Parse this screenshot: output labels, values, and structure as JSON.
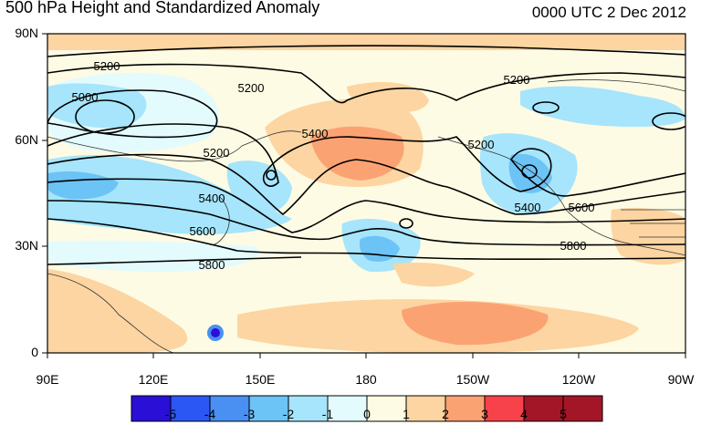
{
  "header": {
    "title": "500 hPa Height and Standardized Anomaly",
    "valid_time": "0000 UTC 2 Dec 2012"
  },
  "axes": {
    "lat_labels": [
      "0",
      "30N",
      "60N",
      "90N"
    ],
    "lon_labels": [
      "90E",
      "120E",
      "150E",
      "180",
      "150W",
      "120W",
      "90W"
    ]
  },
  "contour_labels": [
    "5200",
    "5000",
    "5200",
    "5200",
    "5200",
    "5400",
    "5400",
    "5600",
    "5800",
    "5200",
    "5400",
    "5600",
    "5800"
  ],
  "colorbar": {
    "labels": [
      "-5",
      "-4",
      "-3",
      "-2",
      "-1",
      "0",
      "1",
      "2",
      "3",
      "4",
      "5"
    ],
    "colors": [
      "#2a0fd6",
      "#2b57f4",
      "#4a8ff2",
      "#6cc3f5",
      "#a6e5fb",
      "#e3fbfd",
      "#fefbe4",
      "#fcd5a2",
      "#fba273",
      "#f7424b",
      "#a31628"
    ]
  },
  "colors": {
    "land_outline": "#333333",
    "contour": "#000000",
    "background": "#ffffff"
  }
}
